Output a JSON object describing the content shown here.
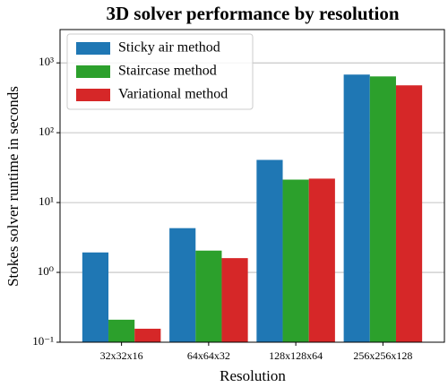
{
  "chart_data": {
    "type": "bar",
    "title": "3D solver performance by resolution",
    "xlabel": "Resolution",
    "ylabel": "Stokes solver runtime in seconds",
    "categories": [
      "32x32x16",
      "64x64x32",
      "128x128x64",
      "256x256x128"
    ],
    "series": [
      {
        "name": "Sticky air method",
        "color": "#1f77b4",
        "values": [
          1.93,
          4.3,
          40.8,
          680
        ]
      },
      {
        "name": "Staircase method",
        "color": "#2ca02c",
        "values": [
          0.21,
          2.05,
          21.3,
          640
        ]
      },
      {
        "name": "Variational method",
        "color": "#d62728",
        "values": [
          0.156,
          1.6,
          22,
          477
        ]
      }
    ],
    "ylim": [
      0.1,
      3000
    ],
    "log_y": true,
    "yticks": [
      {
        "value": 0.1,
        "label": "10⁻¹"
      },
      {
        "value": 1,
        "label": "10⁰"
      },
      {
        "value": 10,
        "label": "10¹"
      },
      {
        "value": 100,
        "label": "10²"
      },
      {
        "value": 1000,
        "label": "10³"
      }
    ],
    "grid": true,
    "legend": "upper-left"
  }
}
